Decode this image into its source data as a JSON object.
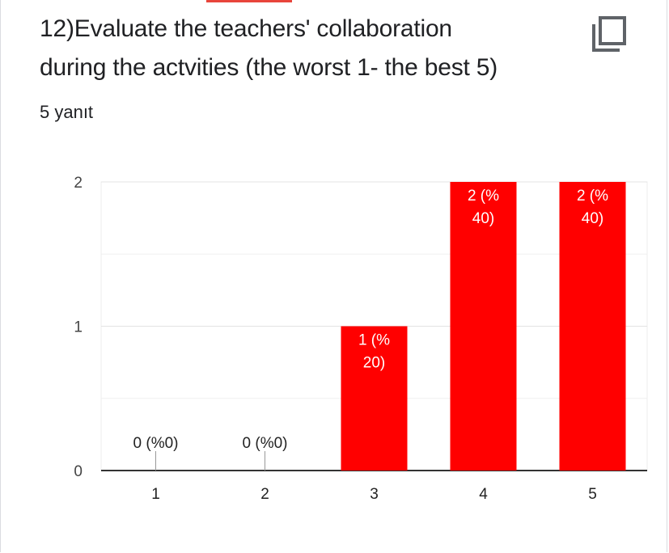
{
  "question": {
    "title_line1": "12)Evaluate the teachers' collaboration",
    "title_line2": "during the actvities (the worst 1- the best 5)",
    "response_count": "5 yanıt"
  },
  "toolbar": {
    "copy_icon": "copy-icon"
  },
  "colors": {
    "bar": "#ff0000",
    "accent": "#e8453c"
  },
  "chart_data": {
    "type": "bar",
    "categories": [
      "1",
      "2",
      "3",
      "4",
      "5"
    ],
    "values": [
      0,
      0,
      1,
      2,
      2
    ],
    "data_labels": [
      "0 (%0)",
      "0 (%0)",
      "1 (% 20)",
      "2 (% 40)",
      "2 (% 40)"
    ],
    "y_ticks": [
      "0",
      "1",
      "2"
    ],
    "ylim": [
      0,
      2
    ],
    "grid": true,
    "legend": "none"
  }
}
